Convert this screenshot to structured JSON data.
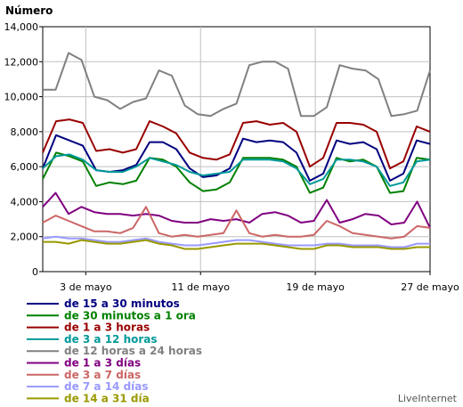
{
  "chart_data": {
    "type": "line",
    "ylabel": "Número",
    "credit": "LiveInternet",
    "ylim": [
      0,
      14000
    ],
    "y_ticks": [
      "0",
      "2,000",
      "4,000",
      "6,000",
      "8,000",
      "10,000",
      "12,000",
      "14,000"
    ],
    "x_ticks": [
      {
        "day": 3,
        "label": "3 de mayo"
      },
      {
        "day": 11,
        "label": "11 de mayo"
      },
      {
        "day": 19,
        "label": "19 de mayo"
      },
      {
        "day": 27,
        "label": "27 de mayo"
      }
    ],
    "x_range": [
      0,
      27
    ],
    "grid": true,
    "series": [
      {
        "name": "de 15 a 30 minutos",
        "color": "#000080",
        "values": [
          5900,
          7800,
          7500,
          7200,
          5800,
          5700,
          5800,
          6100,
          7400,
          7400,
          7000,
          5900,
          5400,
          5500,
          5900,
          7600,
          7400,
          7500,
          7400,
          6800,
          5200,
          5600,
          7500,
          7300,
          7400,
          7000,
          5200,
          5600,
          7500,
          7300
        ]
      },
      {
        "name": "de 30 minutos a 1 ora",
        "color": "#008000",
        "values": [
          5300,
          6800,
          6600,
          6300,
          4900,
          5100,
          5000,
          5200,
          6500,
          6400,
          6000,
          5100,
          4600,
          4700,
          5100,
          6500,
          6500,
          6500,
          6400,
          6000,
          4500,
          4800,
          6500,
          6300,
          6400,
          6000,
          4500,
          4600,
          6500,
          6400
        ]
      },
      {
        "name": "de 1 a 3 horas",
        "color": "#990000",
        "values": [
          6800,
          8600,
          8700,
          8500,
          6900,
          7000,
          6800,
          7000,
          8600,
          8300,
          7900,
          6800,
          6500,
          6400,
          6700,
          8500,
          8600,
          8400,
          8500,
          8000,
          6000,
          6500,
          8500,
          8500,
          8400,
          8000,
          5900,
          6300,
          8300,
          8000
        ]
      },
      {
        "name": "de 3 a 12 horas",
        "color": "#009999",
        "values": [
          5900,
          6600,
          6700,
          6400,
          5800,
          5700,
          5700,
          6000,
          6500,
          6300,
          6100,
          5700,
          5500,
          5600,
          5700,
          6400,
          6400,
          6400,
          6300,
          5900,
          5000,
          5300,
          6400,
          6400,
          6300,
          6000,
          4900,
          5100,
          6300,
          6400
        ]
      },
      {
        "name": "de 12 horas a 24 horas",
        "color": "#808080",
        "values": [
          10400,
          10400,
          12500,
          12100,
          10000,
          9800,
          9300,
          9700,
          9900,
          11500,
          11200,
          9500,
          9000,
          8900,
          9300,
          9600,
          11800,
          12000,
          12000,
          11600,
          8900,
          8900,
          9400,
          11800,
          11600,
          11500,
          11000,
          8900,
          9000,
          9200,
          11500
        ]
      },
      {
        "name": "de 1 a 3 días",
        "color": "#800080",
        "values": [
          3700,
          4500,
          3300,
          3700,
          3400,
          3300,
          3300,
          3200,
          3300,
          3200,
          2900,
          2800,
          2800,
          3000,
          2900,
          3000,
          2800,
          3300,
          3400,
          3200,
          2800,
          2900,
          4100,
          2800,
          3000,
          3300,
          3200,
          2700,
          2800,
          4000,
          2500
        ]
      },
      {
        "name": "de 3 a 7 días",
        "color": "#cc6666",
        "values": [
          2800,
          3200,
          2900,
          2600,
          2300,
          2300,
          2200,
          2500,
          3700,
          2200,
          2000,
          2100,
          2000,
          2100,
          2200,
          3500,
          2200,
          2000,
          2100,
          2000,
          2000,
          2100,
          2900,
          2600,
          2200,
          2100,
          2000,
          1900,
          2000,
          2600,
          2500
        ]
      },
      {
        "name": "de 7 a 14 días",
        "color": "#9999ff",
        "values": [
          1900,
          2000,
          1900,
          1900,
          1800,
          1700,
          1700,
          1800,
          1900,
          1700,
          1600,
          1500,
          1500,
          1600,
          1700,
          1800,
          1800,
          1700,
          1600,
          1500,
          1500,
          1500,
          1600,
          1600,
          1500,
          1500,
          1500,
          1400,
          1400,
          1600,
          1600
        ]
      },
      {
        "name": "de 14 a 31 día",
        "color": "#999900",
        "values": [
          1700,
          1700,
          1600,
          1800,
          1700,
          1600,
          1600,
          1700,
          1800,
          1600,
          1500,
          1300,
          1300,
          1400,
          1500,
          1600,
          1600,
          1600,
          1500,
          1400,
          1300,
          1300,
          1500,
          1500,
          1400,
          1400,
          1400,
          1300,
          1300,
          1400,
          1400
        ]
      }
    ]
  }
}
